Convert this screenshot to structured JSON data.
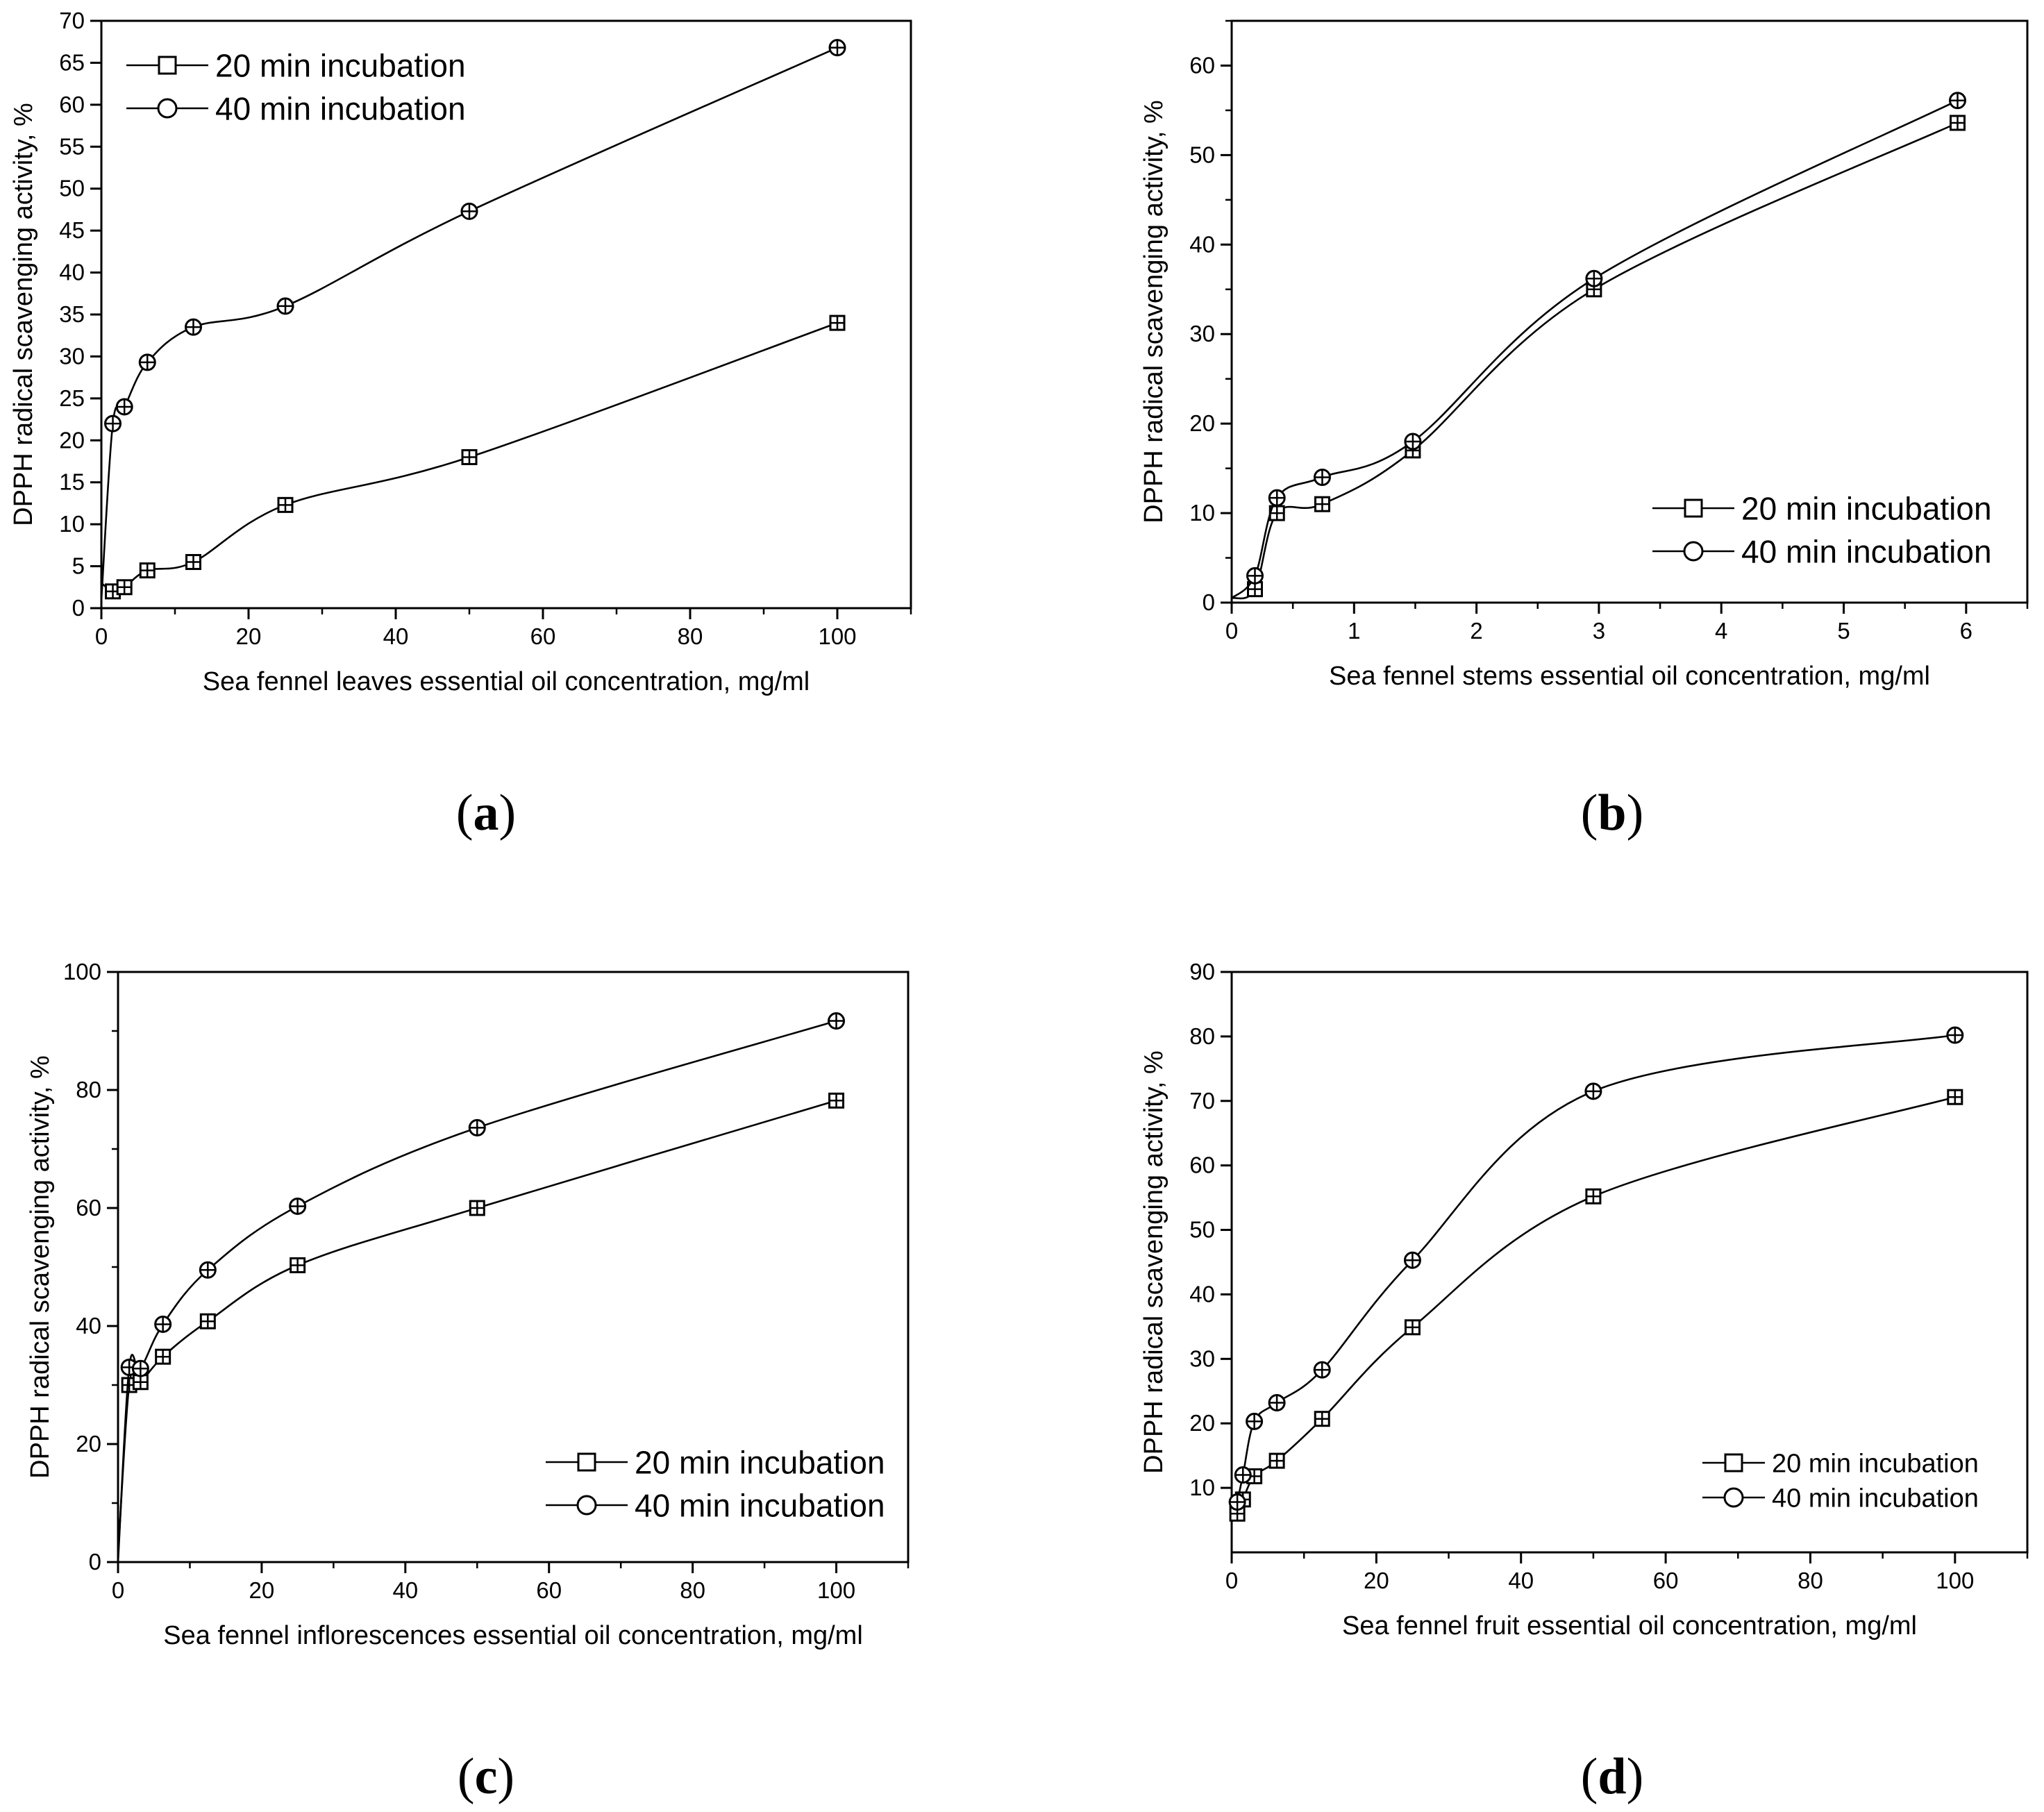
{
  "figure": {
    "series_names": [
      "20 min incubation",
      "40 min incubation"
    ],
    "marker_color": "#000000"
  },
  "chart_data": [
    {
      "id": "a",
      "type": "line",
      "panel_label": "a",
      "xlabel": "Sea fennel leaves essential oil concentration, mg/ml",
      "ylabel": "DPPH radical scavenging activity, %",
      "xlim": [
        0,
        110
      ],
      "ylim": [
        0,
        70
      ],
      "xticks": [
        0,
        20,
        40,
        60,
        80,
        100
      ],
      "yticks": [
        0,
        5,
        10,
        15,
        20,
        25,
        30,
        35,
        40,
        45,
        50,
        55,
        60,
        65,
        70
      ],
      "legend_position": "top-left",
      "series": [
        {
          "name": "20 min incubation",
          "marker": "square",
          "x": [
            0,
            1.56,
            3.13,
            6.25,
            12.5,
            25,
            50,
            100
          ],
          "y": [
            3,
            2,
            2.5,
            4.5,
            5.5,
            12.3,
            18,
            34
          ]
        },
        {
          "name": "40 min incubation",
          "marker": "circle",
          "x": [
            0,
            1.56,
            3.13,
            6.25,
            12.5,
            25,
            50,
            100
          ],
          "y": [
            1,
            22,
            24,
            29.3,
            33.5,
            36,
            47.3,
            66.8
          ]
        }
      ]
    },
    {
      "id": "b",
      "type": "line",
      "panel_label": "b",
      "xlabel": "Sea fennel stems essential oil concentration, mg/ml",
      "ylabel": "DPPH radical scavenging activity, %",
      "xlim": [
        0,
        6.5
      ],
      "ylim": [
        0,
        65
      ],
      "xticks": [
        0,
        1,
        2,
        3,
        4,
        5,
        6
      ],
      "yticks": [
        0,
        10,
        20,
        30,
        40,
        50,
        60
      ],
      "legend_position": "bottom-right",
      "series": [
        {
          "name": "20 min incubation",
          "marker": "square",
          "x": [
            0,
            0.19,
            0.37,
            0.74,
            1.48,
            2.96,
            5.93
          ],
          "y": [
            0.5,
            1.5,
            10,
            11,
            17,
            35,
            53.6
          ]
        },
        {
          "name": "40 min incubation",
          "marker": "circle",
          "x": [
            0,
            0.19,
            0.37,
            0.74,
            1.48,
            2.96,
            5.93
          ],
          "y": [
            0.5,
            3,
            11.7,
            14,
            18,
            36.2,
            56.1
          ]
        }
      ]
    },
    {
      "id": "c",
      "type": "line",
      "panel_label": "c",
      "xlabel": "Sea fennel inflorescences essential oil concentration, mg/ml",
      "ylabel": "DPPH radical scavenging activity, %",
      "xlim": [
        0,
        110
      ],
      "ylim": [
        0,
        100
      ],
      "xticks": [
        0,
        20,
        40,
        60,
        80,
        100
      ],
      "yticks": [
        0,
        20,
        40,
        60,
        80,
        100
      ],
      "legend_position": "bottom-right",
      "series": [
        {
          "name": "20 min incubation",
          "marker": "square",
          "x": [
            0,
            1.56,
            3.13,
            6.25,
            12.5,
            25,
            50,
            100
          ],
          "y": [
            1,
            30,
            30.5,
            34.8,
            40.8,
            50.3,
            60,
            78.2
          ]
        },
        {
          "name": "40 min incubation",
          "marker": "circle",
          "x": [
            0,
            1.56,
            3.13,
            6.25,
            12.5,
            25,
            50,
            100
          ],
          "y": [
            0,
            33,
            32.8,
            40.3,
            49.5,
            60.3,
            73.6,
            91.7
          ]
        }
      ]
    },
    {
      "id": "d",
      "type": "line",
      "panel_label": "d",
      "xlabel": "Sea fennel fruit essential oil concentration, mg/ml",
      "ylabel": "DPPH radical scavenging activity, %",
      "xlim": [
        0,
        110
      ],
      "ylim": [
        0,
        90
      ],
      "xticks": [
        0,
        20,
        40,
        60,
        80,
        100
      ],
      "yticks": [
        10,
        20,
        30,
        40,
        50,
        60,
        70,
        80,
        90
      ],
      "legend_position": "bottom-right",
      "series": [
        {
          "name": "20 min incubation",
          "marker": "square",
          "x": [
            0.78,
            1.56,
            3.13,
            6.25,
            12.5,
            25,
            50,
            100
          ],
          "y": [
            6,
            8.2,
            11.8,
            14.2,
            20.7,
            34.9,
            55.2,
            70.6
          ]
        },
        {
          "name": "40 min incubation",
          "marker": "circle",
          "x": [
            0.78,
            1.56,
            3.13,
            6.25,
            12.5,
            25,
            50,
            100
          ],
          "y": [
            7.8,
            12,
            20.3,
            23.2,
            28.3,
            45.3,
            71.5,
            80.2
          ]
        }
      ]
    }
  ]
}
